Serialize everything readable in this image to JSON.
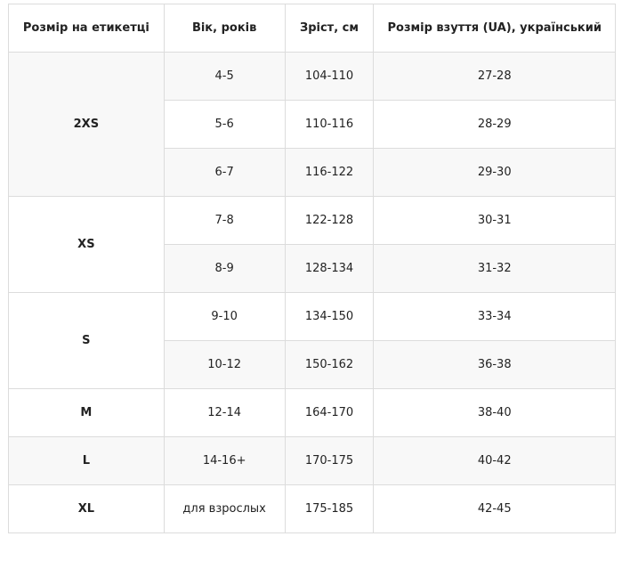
{
  "table": {
    "header": [
      "Розмір на етикетці",
      "Вік, років",
      "Зріст, см",
      "Розмір взуття (UA), український"
    ],
    "groups": [
      {
        "size": "2XS",
        "rows": [
          [
            "4-5",
            "104-110",
            "27-28"
          ],
          [
            "5-6",
            "110-116",
            "28-29"
          ],
          [
            "6-7",
            "116-122",
            "29-30"
          ]
        ]
      },
      {
        "size": "XS",
        "rows": [
          [
            "7-8",
            "122-128",
            "30-31"
          ],
          [
            "8-9",
            "128-134",
            "31-32"
          ]
        ]
      },
      {
        "size": "S",
        "rows": [
          [
            "9-10",
            "134-150",
            "33-34"
          ],
          [
            "10-12",
            "150-162",
            "36-38"
          ]
        ]
      },
      {
        "size": "M",
        "rows": [
          [
            "12-14",
            "164-170",
            "38-40"
          ]
        ]
      },
      {
        "size": "L",
        "rows": [
          [
            "14-16+",
            "170-175",
            "40-42"
          ]
        ]
      },
      {
        "size": "XL",
        "rows": [
          [
            "для взрослых",
            "175-185",
            "42-45"
          ]
        ]
      }
    ]
  }
}
